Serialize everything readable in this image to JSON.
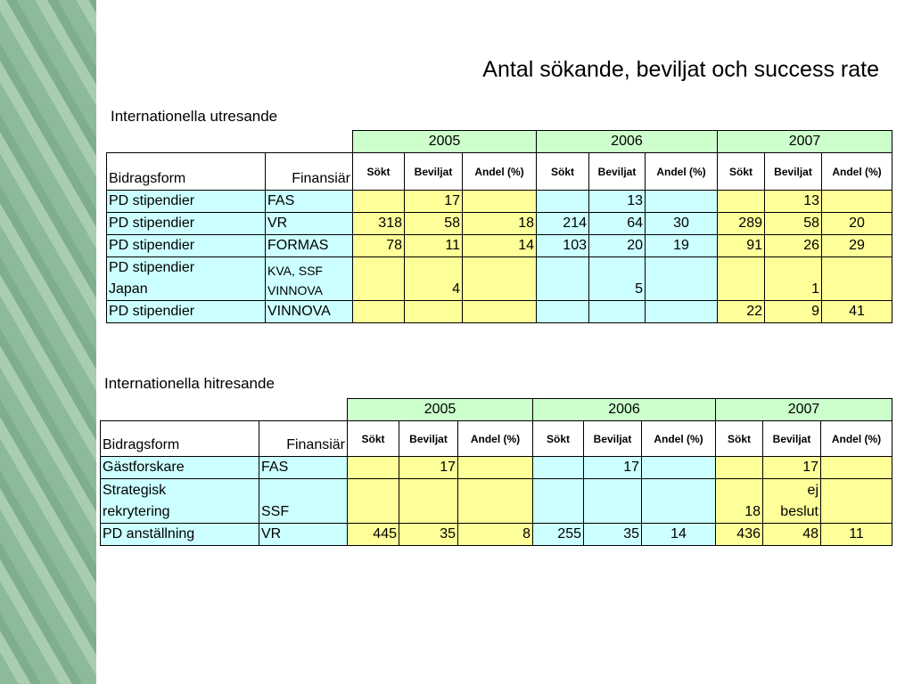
{
  "title": "Antal sökande, beviljat och success rate",
  "tables": [
    {
      "caption": "Internationella utresande",
      "years": [
        2005,
        2006,
        2007
      ],
      "header": {
        "form": "Bidragsform",
        "funder": "Finansiär",
        "sub": [
          "Sökt",
          "Beviljat",
          "Andel (%)"
        ]
      },
      "rows": [
        [
          "PD stipendier",
          "FAS",
          null,
          17,
          null,
          null,
          13,
          null,
          null,
          13,
          null
        ],
        [
          "PD stipendier",
          "VR",
          318,
          58,
          18,
          214,
          64,
          30,
          289,
          58,
          20
        ],
        [
          "PD stipendier",
          "FORMAS",
          78,
          11,
          14,
          103,
          20,
          19,
          91,
          26,
          29
        ],
        [
          "PD stipendier\nJapan",
          "KVA, SSF\nVINNOVA",
          null,
          4,
          null,
          null,
          5,
          null,
          null,
          1,
          null
        ],
        [
          "PD stipendier",
          "VINNOVA",
          null,
          null,
          null,
          null,
          null,
          null,
          22,
          9,
          41
        ]
      ]
    },
    {
      "caption": "Internationella hitresande",
      "years": [
        2005,
        2006,
        2007
      ],
      "header": {
        "form": "Bidragsform",
        "funder": "Finansiär",
        "sub": [
          "Sökt",
          "Beviljat",
          "Andel (%)"
        ]
      },
      "rows": [
        [
          "Gästforskare",
          "FAS",
          null,
          17,
          null,
          null,
          17,
          null,
          null,
          17,
          null
        ],
        [
          "Strategisk\nrekrytering",
          "SSF",
          null,
          null,
          null,
          null,
          null,
          null,
          18,
          "ej\nbeslut",
          null
        ],
        [
          "PD anställning",
          "VR",
          445,
          35,
          8,
          255,
          35,
          14,
          436,
          48,
          11
        ]
      ]
    }
  ]
}
